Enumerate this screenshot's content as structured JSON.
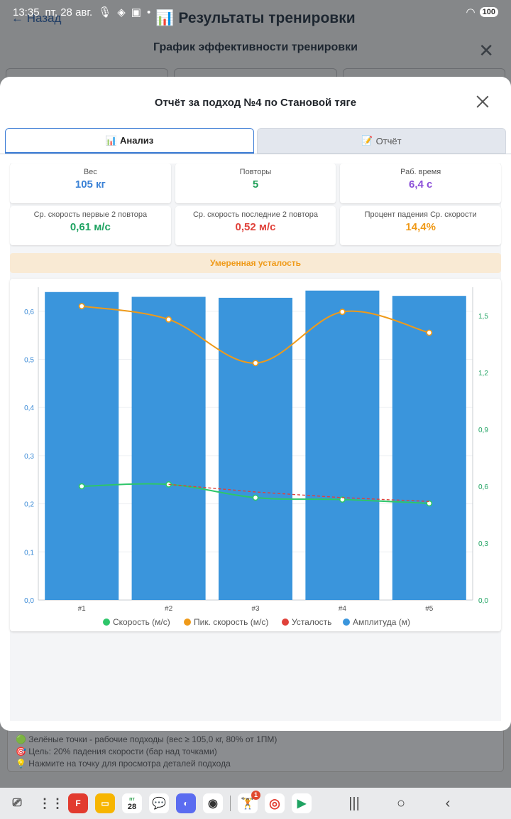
{
  "status_bar": {
    "time": "13:35",
    "date": "пт, 28 авг.",
    "battery": "100"
  },
  "background": {
    "back_label": "← Назад",
    "title": "Результаты тренировки",
    "subtitle": "График эффективности тренировки",
    "notes": [
      "🟢 Зелёные точки - рабочие подходы (вес ≥ 105,0 кг, 80% от 1ПМ)",
      "🎯 Цель: 20% падения скорости (бар над точками)",
      "💡 Нажмите на точку для просмотра деталей подхода"
    ]
  },
  "modal": {
    "title": "Отчёт за подход №4 по Становой тяге",
    "tabs": [
      {
        "icon": "📊",
        "label": "Анализ",
        "active": true
      },
      {
        "icon": "📝",
        "label": "Отчёт",
        "active": false
      }
    ]
  },
  "stats_row1": [
    {
      "label": "Вес",
      "value": "105 кг",
      "color": "#3b82d6"
    },
    {
      "label": "Повторы",
      "value": "5",
      "color": "#21a05a"
    },
    {
      "label": "Раб. время",
      "value": "6,4 с",
      "color": "#8b4fd8"
    }
  ],
  "stats_row2": [
    {
      "label": "Ср. скорость первые 2 повтора",
      "value": "0,61 м/с",
      "color": "#1fa362"
    },
    {
      "label": "Ср. скорость последние 2 повтора",
      "value": "0,52 м/с",
      "color": "#e0413a"
    },
    {
      "label": "Процент падения Ср. скорости",
      "value": "14,4%",
      "color": "#ef9a19"
    }
  ],
  "fatigue_label": "Умеренная усталость",
  "chart_data": {
    "type": "bar",
    "categories": [
      "#1",
      "#2",
      "#3",
      "#4",
      "#5"
    ],
    "y_left": {
      "ticks": [
        "0,0",
        "0,1",
        "0,2",
        "0,3",
        "0,4",
        "0,5",
        "0,6"
      ],
      "range": [
        0,
        0.65
      ]
    },
    "y_right": {
      "ticks": [
        "0,0",
        "0,3",
        "0,6",
        "0,9",
        "1,2",
        "1,5"
      ],
      "range": [
        0,
        1.65
      ]
    },
    "series": [
      {
        "name": "Амплитуда (м)",
        "type": "bar",
        "axis": "left",
        "color": "#3a95dc",
        "values": [
          0.64,
          0.63,
          0.628,
          0.643,
          0.632
        ]
      },
      {
        "name": "Пик. скорость (м/с)",
        "type": "line",
        "axis": "right",
        "color": "#ef9a19",
        "values": [
          1.55,
          1.48,
          1.25,
          1.52,
          1.41
        ]
      },
      {
        "name": "Скорость (м/с)",
        "type": "line",
        "axis": "right",
        "color": "#2ec66a",
        "values": [
          0.6,
          0.61,
          0.54,
          0.53,
          0.51
        ]
      },
      {
        "name": "Усталость",
        "type": "dashed",
        "axis": "right",
        "color": "#e0413a",
        "values": [
          null,
          0.61,
          0.57,
          0.54,
          0.52
        ]
      }
    ],
    "legend": [
      "Скорость (м/с)",
      "Пик. скорость (м/с)",
      "Усталость",
      "Амплитуда (м)"
    ],
    "legend_colors": [
      "#2ec66a",
      "#ef9a19",
      "#e0413a",
      "#3a95dc"
    ],
    "legend_position": "bottom"
  },
  "navbar": {
    "calendar_day": "28",
    "calendar_weekday": "пт",
    "badge": "1"
  }
}
